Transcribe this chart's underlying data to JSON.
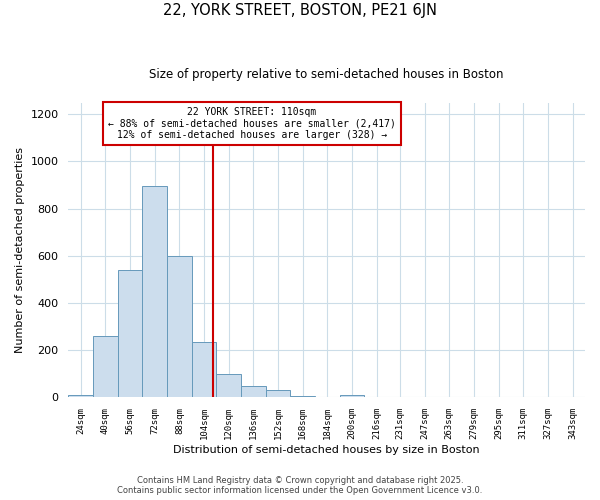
{
  "title": "22, YORK STREET, BOSTON, PE21 6JN",
  "subtitle": "Size of property relative to semi-detached houses in Boston",
  "xlabel": "Distribution of semi-detached houses by size in Boston",
  "ylabel": "Number of semi-detached properties",
  "bar_labels": [
    "24sqm",
    "40sqm",
    "56sqm",
    "72sqm",
    "88sqm",
    "104sqm",
    "120sqm",
    "136sqm",
    "152sqm",
    "168sqm",
    "184sqm",
    "200sqm",
    "216sqm",
    "231sqm",
    "247sqm",
    "263sqm",
    "279sqm",
    "295sqm",
    "311sqm",
    "327sqm",
    "343sqm"
  ],
  "bar_values": [
    10,
    260,
    540,
    895,
    600,
    235,
    100,
    48,
    32,
    5,
    0,
    10,
    0,
    0,
    0,
    0,
    0,
    0,
    0,
    0,
    0
  ],
  "bar_color": "#ccdded",
  "bar_edge_color": "#6699bb",
  "property_line_x": 110,
  "property_line_color": "#cc0000",
  "annotation_title": "22 YORK STREET: 110sqm",
  "annotation_line1": "← 88% of semi-detached houses are smaller (2,417)",
  "annotation_line2": "12% of semi-detached houses are larger (328) →",
  "annotation_box_color": "#cc0000",
  "ylim": [
    0,
    1250
  ],
  "yticks": [
    0,
    200,
    400,
    600,
    800,
    1000,
    1200
  ],
  "bin_width": 16,
  "footnote1": "Contains HM Land Registry data © Crown copyright and database right 2025.",
  "footnote2": "Contains public sector information licensed under the Open Government Licence v3.0.",
  "background_color": "#ffffff",
  "grid_color": "#ccdde8"
}
